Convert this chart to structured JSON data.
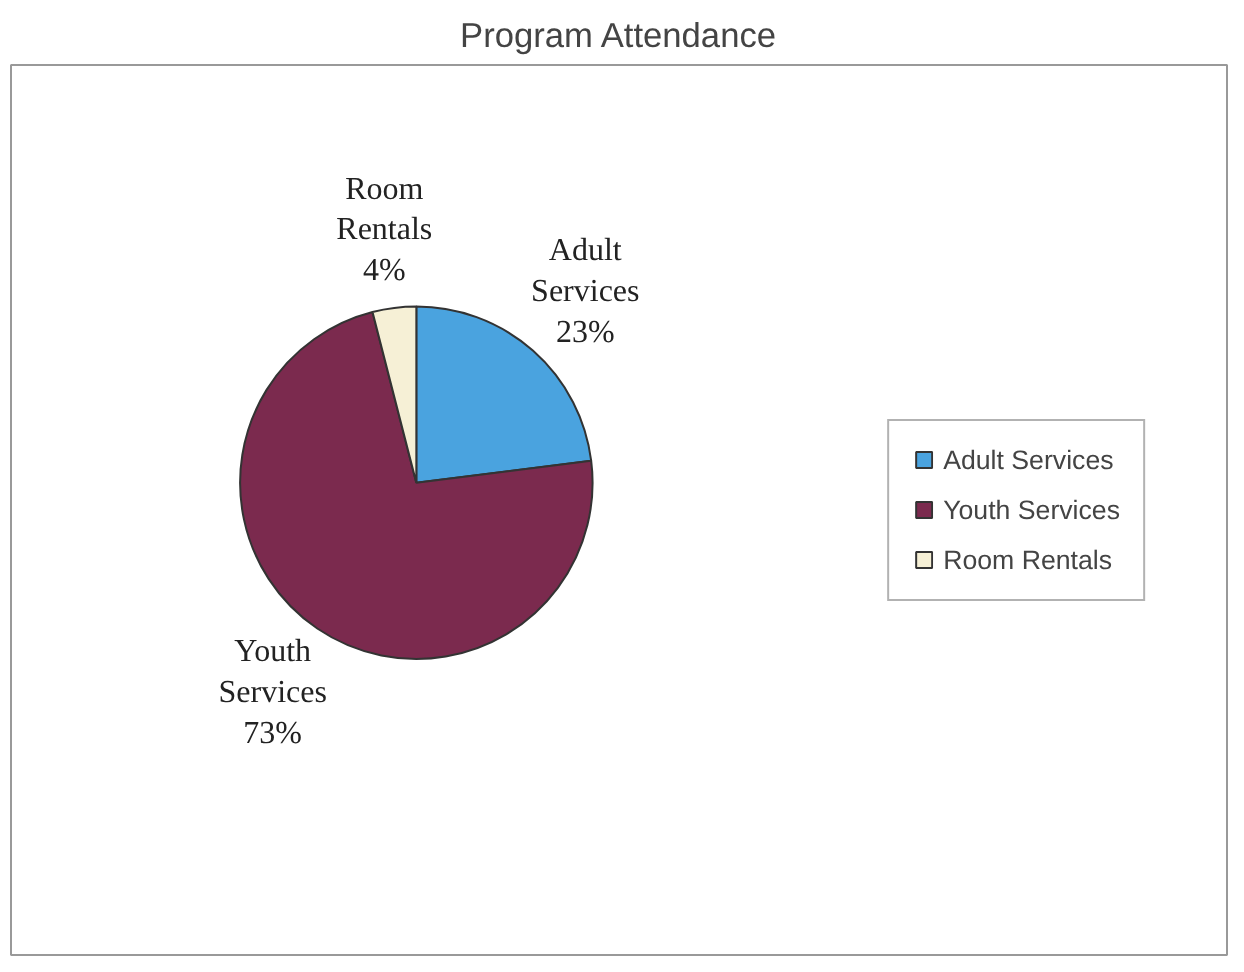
{
  "chart_data": {
    "type": "pie",
    "title": "Program Attendance",
    "categories": [
      "Adult Services",
      "Youth Services",
      "Room Rentals"
    ],
    "values": [
      23,
      73,
      4
    ],
    "colors": [
      "#4aa3df",
      "#7b2a4e",
      "#f6f0d6"
    ],
    "value_labels": [
      "23%",
      "73%",
      "4%"
    ],
    "legend": "right"
  }
}
